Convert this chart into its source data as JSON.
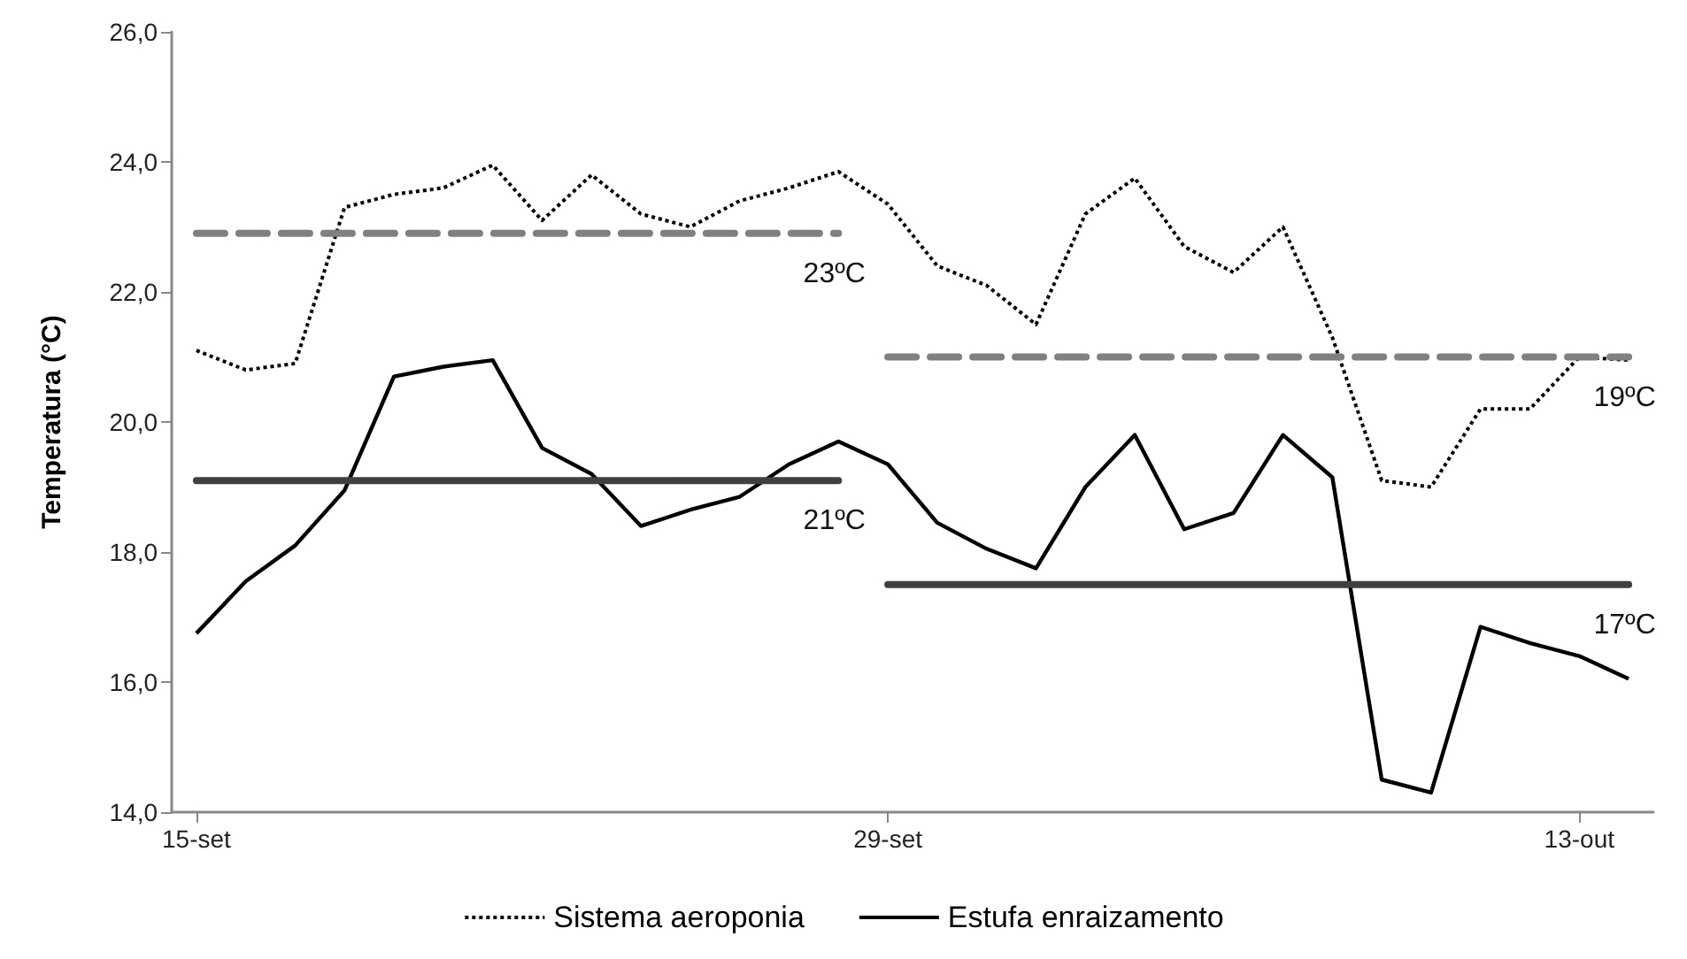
{
  "chart_data": {
    "type": "line",
    "ylabel": "Temperatura (°C)",
    "categories": [
      "15-set",
      null,
      null,
      null,
      null,
      null,
      null,
      null,
      null,
      null,
      null,
      null,
      null,
      null,
      "29-set",
      null,
      null,
      null,
      null,
      null,
      null,
      null,
      null,
      null,
      null,
      null,
      null,
      null,
      "13-out",
      null
    ],
    "series": [
      {
        "name": "Sistema aeroponia",
        "color": "#000000",
        "line_style": "dotted",
        "values": [
          21.1,
          20.8,
          20.9,
          23.3,
          23.5,
          23.6,
          23.95,
          23.1,
          23.8,
          23.2,
          23.0,
          23.4,
          23.6,
          23.85,
          23.35,
          22.4,
          22.1,
          21.5,
          23.2,
          23.75,
          22.7,
          22.3,
          23.0,
          21.3,
          19.1,
          19.0,
          20.2,
          20.2,
          21.0,
          20.95
        ]
      },
      {
        "name": "Estufa enraizamento",
        "color": "#000000",
        "line_style": "solid",
        "values": [
          16.75,
          17.55,
          18.1,
          18.95,
          20.7,
          20.85,
          20.95,
          19.6,
          19.2,
          18.4,
          18.65,
          18.85,
          19.35,
          19.7,
          19.35,
          18.45,
          18.05,
          17.75,
          19.0,
          19.8,
          18.35,
          18.6,
          19.8,
          19.15,
          14.5,
          14.3,
          16.85,
          16.6,
          16.4,
          16.05
        ]
      },
      {
        "color": "#808080",
        "line_style": "dashed",
        "values": [
          22.9,
          22.9,
          22.9,
          22.9,
          22.9,
          22.9,
          22.9,
          22.9,
          22.9,
          22.9,
          22.9,
          22.9,
          22.9,
          22.9,
          null,
          null,
          null,
          null,
          null,
          null,
          null,
          null,
          null,
          null,
          null,
          null,
          null,
          null,
          null,
          null
        ]
      },
      {
        "color": "#404040",
        "line_style": "solid",
        "values": [
          19.1,
          19.1,
          19.1,
          19.1,
          19.1,
          19.1,
          19.1,
          19.1,
          19.1,
          19.1,
          19.1,
          19.1,
          19.1,
          19.1,
          null,
          null,
          null,
          null,
          null,
          null,
          null,
          null,
          null,
          null,
          null,
          null,
          null,
          null,
          null,
          null
        ]
      },
      {
        "color": "#808080",
        "line_style": "dashed",
        "values": [
          null,
          null,
          null,
          null,
          null,
          null,
          null,
          null,
          null,
          null,
          null,
          null,
          null,
          null,
          21.0,
          21.0,
          21.0,
          21.0,
          21.0,
          21.0,
          21.0,
          21.0,
          21.0,
          21.0,
          21.0,
          21.0,
          21.0,
          21.0,
          21.0,
          21.0
        ]
      },
      {
        "color": "#404040",
        "line_style": "solid",
        "values": [
          null,
          null,
          null,
          null,
          null,
          null,
          null,
          null,
          null,
          null,
          null,
          null,
          null,
          null,
          17.5,
          17.5,
          17.5,
          17.5,
          17.5,
          17.5,
          17.5,
          17.5,
          17.5,
          17.5,
          17.5,
          17.5,
          17.5,
          17.5,
          17.5,
          17.5
        ]
      }
    ],
    "annotations": [
      "23ºC",
      "21ºC",
      "19ºC",
      "17ºC"
    ],
    "ylim": [
      14,
      26
    ],
    "yticks": [
      {
        "value": 14,
        "label": "14,0"
      },
      {
        "value": 16,
        "label": "16,0"
      },
      {
        "value": 18,
        "label": "18,0"
      },
      {
        "value": 20,
        "label": "20,0"
      },
      {
        "value": 22,
        "label": "22,0"
      },
      {
        "value": 24,
        "label": "24,0"
      },
      {
        "value": 26,
        "label": "26,0"
      }
    ],
    "grid": false,
    "legend": "bottom",
    "marker": "none"
  }
}
